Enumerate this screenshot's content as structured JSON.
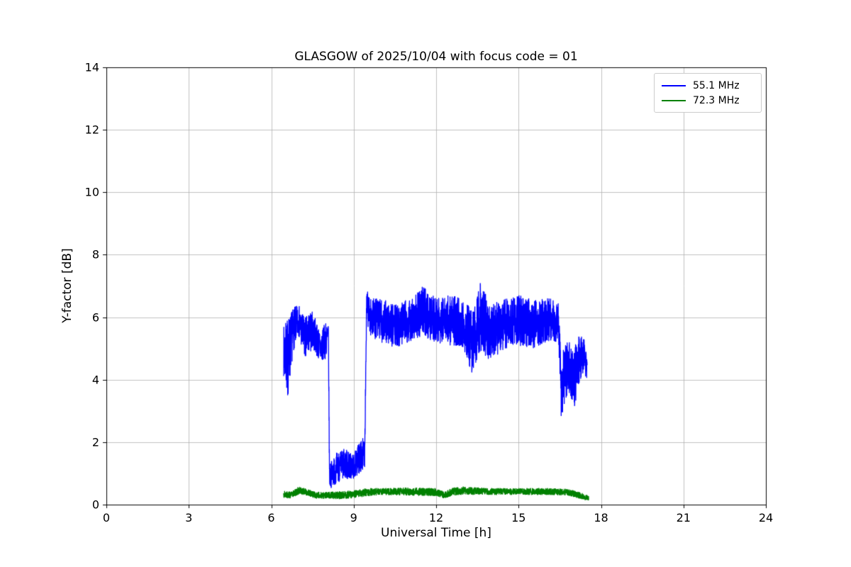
{
  "title": "GLASGOW of 2025/10/04 with focus code = 01",
  "chart_data": {
    "type": "line",
    "title": "GLASGOW of 2025/10/04 with focus code = 01",
    "xlabel": "Universal Time [h]",
    "ylabel": "Y-factor [dB]",
    "xlim": [
      0,
      24
    ],
    "ylim": [
      0,
      14
    ],
    "x_ticks": [
      0,
      3,
      6,
      9,
      12,
      15,
      18,
      21,
      24
    ],
    "y_ticks": [
      0,
      2,
      4,
      6,
      8,
      10,
      12,
      14
    ],
    "grid": true,
    "grid_color": "#b0b0b0",
    "legend_position": "upper right",
    "series": [
      {
        "name": "55.1 MHz",
        "color": "#0000ff",
        "x_start": 6.45,
        "x_end": 17.5,
        "sample_step_h": 0.004,
        "noise_seed": 7,
        "envelope": [
          [
            6.45,
            4.9,
            0.8
          ],
          [
            6.6,
            4.7,
            1.3
          ],
          [
            6.8,
            5.6,
            0.7
          ],
          [
            7.0,
            5.9,
            0.5
          ],
          [
            7.2,
            5.3,
            0.7
          ],
          [
            7.5,
            5.6,
            0.6
          ],
          [
            7.8,
            5.0,
            0.5
          ],
          [
            8.0,
            5.3,
            0.6
          ],
          [
            8.08,
            5.4,
            0.4
          ],
          [
            8.12,
            0.9,
            0.4
          ],
          [
            8.4,
            1.2,
            0.5
          ],
          [
            8.7,
            1.3,
            0.5
          ],
          [
            9.0,
            1.2,
            0.4
          ],
          [
            9.2,
            1.5,
            0.5
          ],
          [
            9.4,
            1.7,
            0.5
          ],
          [
            9.47,
            6.4,
            0.5
          ],
          [
            9.6,
            6.0,
            0.6
          ],
          [
            10.0,
            5.9,
            0.7
          ],
          [
            10.5,
            5.7,
            0.7
          ],
          [
            11.0,
            5.9,
            0.7
          ],
          [
            11.5,
            6.2,
            0.8
          ],
          [
            12.0,
            5.9,
            0.7
          ],
          [
            12.5,
            5.9,
            0.8
          ],
          [
            13.0,
            5.8,
            0.8
          ],
          [
            13.3,
            5.2,
            1.0
          ],
          [
            13.6,
            6.0,
            1.1
          ],
          [
            14.0,
            5.5,
            0.9
          ],
          [
            14.5,
            5.8,
            0.8
          ],
          [
            15.0,
            5.9,
            0.8
          ],
          [
            15.5,
            5.8,
            0.8
          ],
          [
            16.0,
            5.9,
            0.7
          ],
          [
            16.45,
            5.9,
            0.7
          ],
          [
            16.55,
            3.8,
            1.0
          ],
          [
            16.8,
            4.5,
            0.9
          ],
          [
            17.0,
            4.0,
            1.0
          ],
          [
            17.2,
            4.6,
            0.8
          ],
          [
            17.4,
            4.9,
            0.5
          ],
          [
            17.5,
            4.2,
            0.6
          ]
        ]
      },
      {
        "name": "72.3 MHz",
        "color": "#008000",
        "x_start": 6.45,
        "x_end": 17.55,
        "sample_step_h": 0.004,
        "noise_seed": 13,
        "envelope": [
          [
            6.45,
            0.35,
            0.12
          ],
          [
            6.7,
            0.3,
            0.1
          ],
          [
            7.0,
            0.45,
            0.12
          ],
          [
            7.3,
            0.4,
            0.1
          ],
          [
            7.6,
            0.3,
            0.1
          ],
          [
            8.0,
            0.3,
            0.1
          ],
          [
            8.5,
            0.3,
            0.12
          ],
          [
            9.0,
            0.33,
            0.12
          ],
          [
            9.5,
            0.4,
            0.12
          ],
          [
            10.0,
            0.42,
            0.1
          ],
          [
            11.0,
            0.42,
            0.12
          ],
          [
            12.0,
            0.4,
            0.12
          ],
          [
            12.3,
            0.3,
            0.1
          ],
          [
            12.6,
            0.42,
            0.12
          ],
          [
            13.0,
            0.45,
            0.12
          ],
          [
            14.0,
            0.42,
            0.1
          ],
          [
            15.0,
            0.42,
            0.1
          ],
          [
            16.0,
            0.42,
            0.1
          ],
          [
            16.8,
            0.4,
            0.1
          ],
          [
            17.2,
            0.3,
            0.1
          ],
          [
            17.55,
            0.2,
            0.08
          ]
        ]
      }
    ]
  }
}
